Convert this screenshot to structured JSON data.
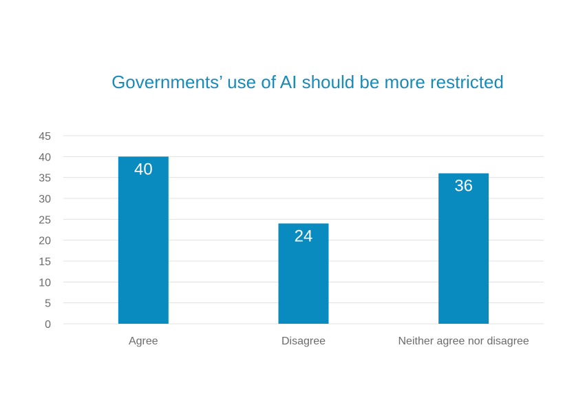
{
  "chart_data": {
    "type": "bar",
    "title": "Governments’ use of AI should be more restricted",
    "categories": [
      "Agree",
      "Disagree",
      "Neither agree nor disagree"
    ],
    "values": [
      40,
      24,
      36
    ],
    "data_labels": [
      "40",
      "24",
      "36"
    ],
    "xlabel": "",
    "ylabel": "",
    "ylim": [
      0,
      45
    ],
    "yticks": [
      "0",
      "5",
      "10",
      "15",
      "20",
      "25",
      "30",
      "35",
      "40",
      "45"
    ],
    "grid": true,
    "legend": "none",
    "colors": {
      "bar": "#0a8bc0",
      "title": "#1a8ab8",
      "grid": "#e0e0e0",
      "tick": "#6b6b6b"
    }
  }
}
